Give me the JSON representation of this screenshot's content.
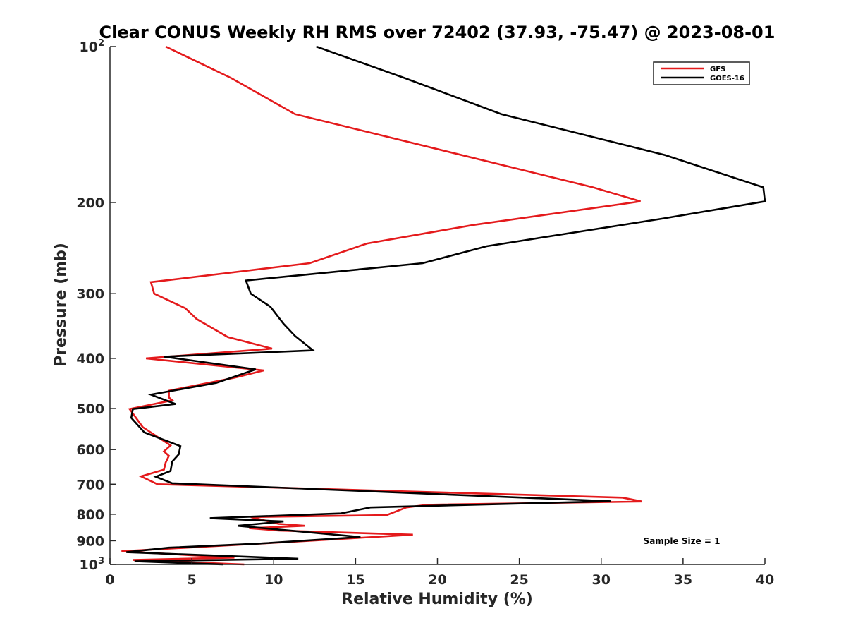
{
  "chart_data": {
    "type": "line",
    "title": "Clear CONUS Weekly RH RMS over 72402 (37.93, -75.47) @ 2023-08-01",
    "xlabel": "Relative Humidity (%)",
    "ylabel": "Pressure (mb)",
    "xlim": [
      0,
      40
    ],
    "ylim": [
      100,
      1000
    ],
    "yscale": "log",
    "y_reversed": true,
    "xticks": [
      0,
      5,
      10,
      15,
      20,
      25,
      30,
      35,
      40
    ],
    "xtick_labels": [
      "0",
      "5",
      "10",
      "15",
      "20",
      "25",
      "30",
      "35",
      "40"
    ],
    "yticks": [
      200,
      300,
      400,
      500,
      600,
      700,
      800,
      900
    ],
    "ytick_labels": [
      "200",
      "300",
      "400",
      "500",
      "600",
      "700",
      "800",
      "900"
    ],
    "ytick_top": {
      "base": "10",
      "exponent": "2",
      "value": 100
    },
    "ytick_bottom": {
      "base": "10",
      "exponent": "3",
      "value": 1000
    },
    "legend_position": "top-right",
    "annotation": "Sample Size = 1",
    "series": [
      {
        "name": "GFS",
        "color": "#e41a1c",
        "points": [
          [
            3.4,
            100
          ],
          [
            7.4,
            115
          ],
          [
            11.3,
            135
          ],
          [
            29.5,
            187
          ],
          [
            32.4,
            199
          ],
          [
            22.2,
            221
          ],
          [
            15.7,
            240
          ],
          [
            12.2,
            262
          ],
          [
            2.5,
            285
          ],
          [
            2.7,
            300
          ],
          [
            4.6,
            320
          ],
          [
            5.3,
            336
          ],
          [
            7.2,
            364
          ],
          [
            9.9,
            383
          ],
          [
            2.2,
            400
          ],
          [
            9.4,
            422
          ],
          [
            7.6,
            436
          ],
          [
            3.6,
            462
          ],
          [
            3.6,
            476
          ],
          [
            3.8,
            482
          ],
          [
            1.2,
            501
          ],
          [
            2.0,
            543
          ],
          [
            3.7,
            589
          ],
          [
            3.3,
            605
          ],
          [
            3.6,
            617
          ],
          [
            3.4,
            636
          ],
          [
            3.3,
            656
          ],
          [
            1.9,
            676
          ],
          [
            2.9,
            700
          ],
          [
            31.3,
            743
          ],
          [
            32.5,
            756
          ],
          [
            19.4,
            767
          ],
          [
            18.1,
            776
          ],
          [
            16.9,
            803
          ],
          [
            8.6,
            810
          ],
          [
            10.3,
            835
          ],
          [
            11.9,
            842
          ],
          [
            8.5,
            851
          ],
          [
            10.3,
            860
          ],
          [
            18.5,
            876
          ],
          [
            10.9,
            905
          ],
          [
            0.7,
            943
          ],
          [
            7.6,
            970
          ],
          [
            1.4,
            980
          ],
          [
            8.2,
            1000
          ]
        ]
      },
      {
        "name": "GOES-16",
        "color": "#000000",
        "points": [
          [
            12.6,
            100
          ],
          [
            18.0,
            115
          ],
          [
            23.9,
            135
          ],
          [
            33.9,
            162
          ],
          [
            39.9,
            187
          ],
          [
            40.0,
            199
          ],
          [
            33.7,
            215
          ],
          [
            23.0,
            243
          ],
          [
            19.1,
            262
          ],
          [
            8.3,
            283
          ],
          [
            8.6,
            300
          ],
          [
            9.8,
            318
          ],
          [
            10.6,
            343
          ],
          [
            11.3,
            362
          ],
          [
            12.4,
            386
          ],
          [
            3.3,
            397
          ],
          [
            8.9,
            420
          ],
          [
            6.5,
            446
          ],
          [
            2.5,
            470
          ],
          [
            4.0,
            490
          ],
          [
            1.4,
            501
          ],
          [
            1.3,
            521
          ],
          [
            2.1,
            556
          ],
          [
            4.3,
            591
          ],
          [
            4.2,
            613
          ],
          [
            3.8,
            633
          ],
          [
            3.7,
            660
          ],
          [
            2.8,
            677
          ],
          [
            3.8,
            697
          ],
          [
            30.6,
            755
          ],
          [
            15.9,
            776
          ],
          [
            14.1,
            797
          ],
          [
            6.1,
            814
          ],
          [
            10.6,
            826
          ],
          [
            7.8,
            842
          ],
          [
            15.3,
            885
          ],
          [
            9.0,
            912
          ],
          [
            3.6,
            928
          ],
          [
            1.0,
            947
          ],
          [
            11.5,
            975
          ],
          [
            1.5,
            986
          ],
          [
            6.9,
            1000
          ]
        ]
      }
    ]
  }
}
